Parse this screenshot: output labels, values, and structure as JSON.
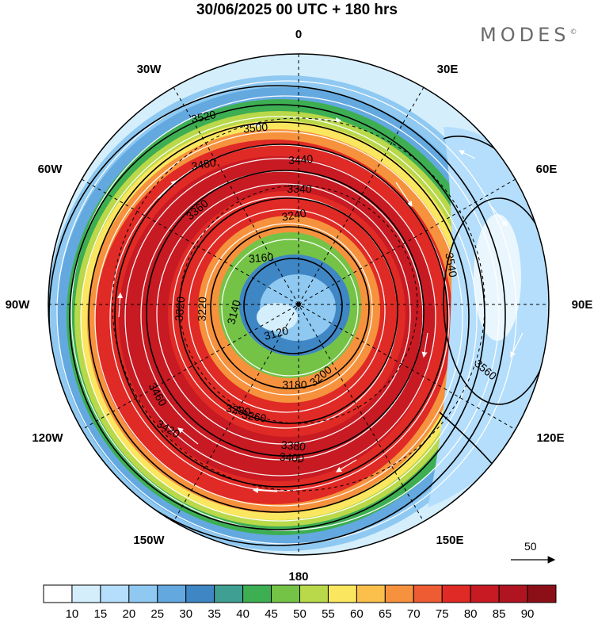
{
  "header": {
    "title": "30/06/2025  00 UTC  + 180 hrs"
  },
  "brand": {
    "text": "MODES",
    "mark": "©"
  },
  "map": {
    "projection": "polar stereographic",
    "hemisphere": "south",
    "longitude_labels": [
      {
        "name": "lon-0",
        "text": "0"
      },
      {
        "name": "lon-30e",
        "text": "30E"
      },
      {
        "name": "lon-60e",
        "text": "60E"
      },
      {
        "name": "lon-90e",
        "text": "90E"
      },
      {
        "name": "lon-120e",
        "text": "120E"
      },
      {
        "name": "lon-150e",
        "text": "150E"
      },
      {
        "name": "lon-180",
        "text": "180"
      },
      {
        "name": "lon-150w",
        "text": "150W"
      },
      {
        "name": "lon-120w",
        "text": "120W"
      },
      {
        "name": "lon-90w",
        "text": "90W"
      },
      {
        "name": "lon-60w",
        "text": "60W"
      },
      {
        "name": "lon-30w",
        "text": "30W"
      }
    ],
    "contour_labels": [
      "3520",
      "3500",
      "3480",
      "3440",
      "3340",
      "3240",
      "3160",
      "3140",
      "3120",
      "3180",
      "3200",
      "3260",
      "3280",
      "3380",
      "3400",
      "3420",
      "3460",
      "3540",
      "3560",
      "3360",
      "3320",
      "3220"
    ],
    "reference_vector": {
      "text": "50"
    }
  },
  "colorbar": {
    "ticks": [
      "10",
      "15",
      "20",
      "25",
      "30",
      "35",
      "40",
      "45",
      "50",
      "55",
      "60",
      "65",
      "70",
      "75",
      "80",
      "85",
      "90"
    ],
    "colors": [
      "#ffffff",
      "#d4eefc",
      "#b4defb",
      "#8fc9f1",
      "#63a9e0",
      "#3f86c4",
      "#3f9f93",
      "#3eae53",
      "#74c347",
      "#b9d84a",
      "#fae65f",
      "#fbc04b",
      "#f6923d",
      "#ee5c34",
      "#e02a25",
      "#c81a22",
      "#b01420",
      "#8c0f18"
    ]
  }
}
